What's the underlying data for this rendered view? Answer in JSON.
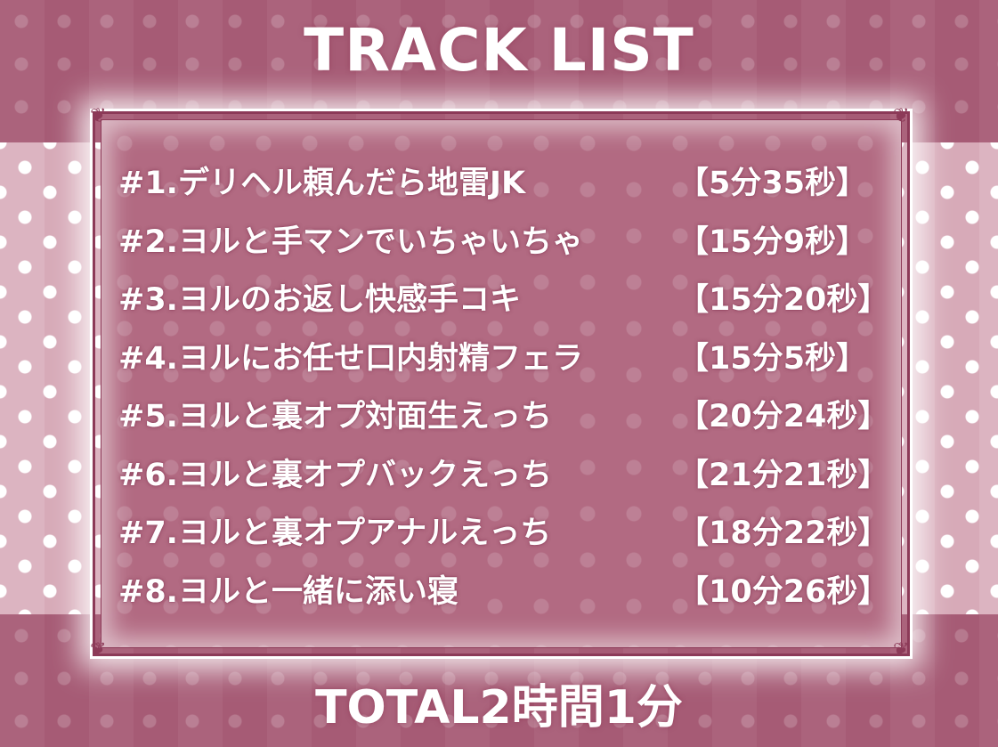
{
  "title": "TRACK LIST",
  "tracks": [
    {
      "name": "#1.デリヘル頼んだら地雷JK",
      "duration": "【5分35秒】"
    },
    {
      "name": "#2.ヨルと手マンでいちゃいちゃ",
      "duration": "【15分9秒】"
    },
    {
      "name": "#3.ヨルのお返し快感手コキ",
      "duration": "【15分20秒】"
    },
    {
      "name": "#4.ヨルにお任せ口内射精フェラ",
      "duration": "【15分5秒】"
    },
    {
      "name": "#5.ヨルと裏オプ対面生えっち",
      "duration": "【20分24秒】"
    },
    {
      "name": "#6.ヨルと裏オプバックえっち",
      "duration": "【21分21秒】"
    },
    {
      "name": "#7.ヨルと裏オプアナルえっち",
      "duration": "【18分22秒】"
    },
    {
      "name": "#8.ヨルと一緒に添い寝",
      "duration": "【10分26秒】"
    }
  ],
  "total": "TOTAL2時間1分",
  "colors": {
    "band": "#a65b75",
    "middle": "#d7aab8",
    "panel": "#b26a82",
    "frame": "#8c3a58",
    "text": "#ffffff"
  }
}
